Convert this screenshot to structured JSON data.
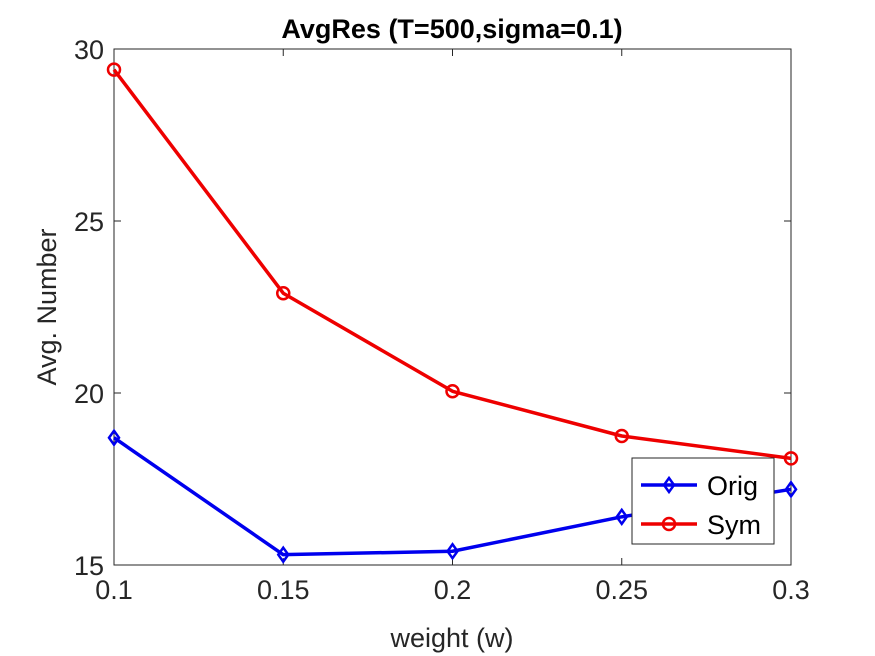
{
  "chart_data": {
    "type": "line",
    "title": "AvgRes (T=500,sigma=0.1)",
    "xlabel": "weight (w)",
    "ylabel": "Avg. Number",
    "x": [
      0.1,
      0.15,
      0.2,
      0.25,
      0.3
    ],
    "xticks": [
      "0.1",
      "0.15",
      "0.2",
      "0.25",
      "0.3"
    ],
    "yticks": [
      "15",
      "20",
      "25",
      "30"
    ],
    "xlim": [
      0.1,
      0.3
    ],
    "ylim": [
      15,
      30
    ],
    "grid": false,
    "legend_position": "lower-right",
    "series": [
      {
        "name": "Orig",
        "color": "#0000ee",
        "marker": "diamond",
        "values": [
          18.7,
          15.3,
          15.4,
          16.4,
          17.2
        ]
      },
      {
        "name": "Sym",
        "color": "#ee0000",
        "marker": "circle",
        "values": [
          29.4,
          22.9,
          20.05,
          18.75,
          18.1
        ]
      }
    ]
  }
}
